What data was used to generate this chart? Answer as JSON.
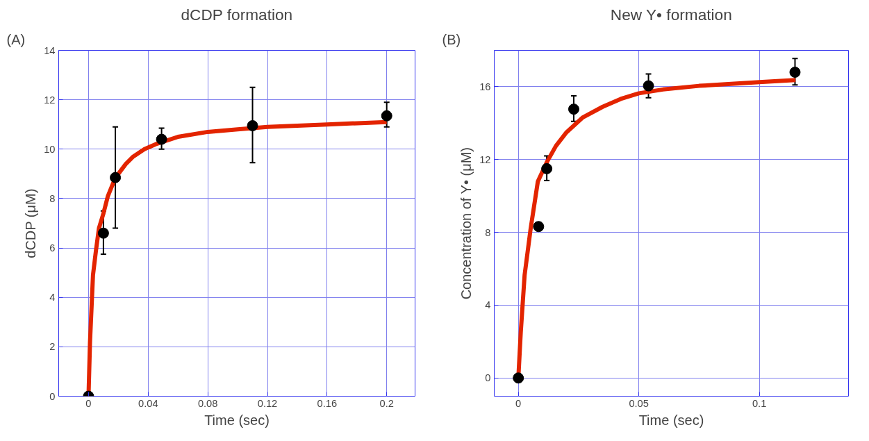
{
  "chart_data": [
    {
      "type": "scatter",
      "title": "dCDP formation",
      "xlabel": "Time (sec)",
      "ylabel": "dCDP (μM)",
      "annotations": [
        "(A)"
      ],
      "xlim": [
        -0.02,
        0.219
      ],
      "ylim": [
        0,
        14
      ],
      "xticks": [
        0,
        0.04,
        0.08,
        0.12,
        0.16,
        0.2
      ],
      "yticks": [
        0,
        2,
        4,
        6,
        8,
        10,
        12,
        14
      ],
      "grid": true,
      "series": [
        {
          "type": "line",
          "color": "#e32400",
          "x": [
            0,
            0.001,
            0.003,
            0.005,
            0.007,
            0.01,
            0.013,
            0.017,
            0.02,
            0.025,
            0.03,
            0.0375,
            0.045,
            0.06,
            0.08,
            0.1,
            0.12,
            0.16,
            0.2
          ],
          "values": [
            0,
            2.2,
            4.9,
            5.9,
            6.8,
            7.4,
            8.1,
            8.7,
            9.0,
            9.4,
            9.7,
            10.0,
            10.2,
            10.5,
            10.7,
            10.8,
            10.9,
            11.0,
            11.1
          ]
        },
        {
          "type": "scatter",
          "marker": "circle",
          "color": "#000000",
          "x": [
            0,
            0.01,
            0.018,
            0.049,
            0.11,
            0.2
          ],
          "values": [
            0,
            6.6,
            8.85,
            10.4,
            10.95,
            11.35
          ],
          "errors": [
            null,
            [
              5.75,
              7.5
            ],
            [
              6.8,
              10.9
            ],
            [
              10.0,
              10.85
            ],
            [
              9.45,
              12.5
            ],
            [
              10.9,
              11.9
            ]
          ]
        }
      ]
    },
    {
      "type": "scatter",
      "title": "New Y• formation",
      "xlabel": "Time (sec)",
      "ylabel": "Concentration of Y• (μM)",
      "annotations": [
        "(B)"
      ],
      "xlim": [
        -0.01,
        0.137
      ],
      "ylim": [
        -1,
        18
      ],
      "xticks": [
        0,
        0.05,
        0.1
      ],
      "yticks": [
        0,
        4,
        8,
        12,
        16
      ],
      "grid": true,
      "series": [
        {
          "type": "line",
          "color": "#e32400",
          "x": [
            0,
            0.001,
            0.0026,
            0.0051,
            0.0081,
            0.012,
            0.0156,
            0.02,
            0.0266,
            0.035,
            0.0425,
            0.05,
            0.06,
            0.075,
            0.1,
            0.115
          ],
          "values": [
            0,
            2.5,
            5.65,
            8.2,
            10.8,
            11.9,
            12.75,
            13.5,
            14.3,
            14.9,
            15.33,
            15.64,
            15.85,
            16.05,
            16.25,
            16.37
          ]
        },
        {
          "type": "scatter",
          "marker": "circle",
          "color": "#000000",
          "x": [
            0,
            0.0084,
            0.0118,
            0.023,
            0.054,
            0.1148
          ],
          "values": [
            0,
            8.32,
            11.5,
            14.77,
            16.05,
            16.8
          ],
          "errors": [
            null,
            [
              8.1,
              8.55
            ],
            [
              10.85,
              12.2
            ],
            [
              14.1,
              15.5
            ],
            [
              15.4,
              16.7
            ],
            [
              16.1,
              17.55
            ]
          ]
        }
      ]
    }
  ]
}
